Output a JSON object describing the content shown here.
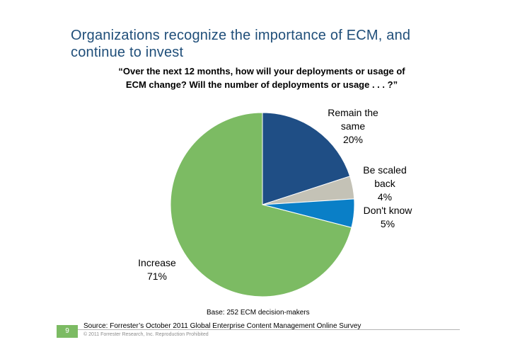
{
  "slide": {
    "title_line1": "Organizations recognize the importance of ECM, and",
    "title_line2": "continue to invest",
    "question_line1": "“Over the next 12 months, how will your deployments or usage of",
    "question_line2": "ECM change? Will the number of deployments or usage . . . ?”",
    "base_note": "Base: 252 ECM decision-makers",
    "source_note": "Source: Forrester’s October 2011 Global Enterprise Content Management Online Survey",
    "copyright": "© 2011 Forrester Research, Inc. Reproduction Prohibited",
    "page_number": "9"
  },
  "chart_data": {
    "type": "pie",
    "title": "",
    "slices": [
      {
        "key": "remain",
        "label_lines": [
          "Remain the",
          "same"
        ],
        "value": 20,
        "value_label": "20%",
        "color": "#1f4e85"
      },
      {
        "key": "scaled_back",
        "label_lines": [
          "Be scaled",
          "back"
        ],
        "value": 4,
        "value_label": "4%",
        "color": "#c4c2b6"
      },
      {
        "key": "dont_know",
        "label_lines": [
          "Don't know"
        ],
        "value": 5,
        "value_label": "5%",
        "color": "#0a7fc7"
      },
      {
        "key": "increase",
        "label_lines": [
          "Increase"
        ],
        "value": 71,
        "value_label": "71%",
        "color": "#7cbb63"
      }
    ],
    "start": "12 o'clock",
    "direction": "clockwise",
    "labels": "outside"
  }
}
